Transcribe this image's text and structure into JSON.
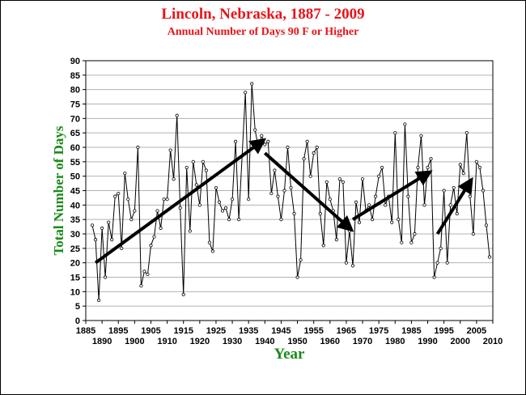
{
  "chart_data": {
    "type": "line",
    "title": "Lincoln, Nebraska, 1887 - 2009",
    "subtitle": "Annual Number of Days 90 F or Higher",
    "xlabel": "Year",
    "ylabel": "Total Number of Days",
    "xlim": [
      1885,
      2010
    ],
    "ylim": [
      0,
      90
    ],
    "y_ticks": [
      0,
      5,
      10,
      15,
      20,
      25,
      30,
      35,
      40,
      45,
      50,
      55,
      60,
      65,
      70,
      75,
      80,
      85,
      90
    ],
    "x_ticks_upper": [
      1885,
      1895,
      1905,
      1915,
      1925,
      1935,
      1945,
      1955,
      1965,
      1975,
      1985,
      1995,
      2005
    ],
    "x_ticks_lower": [
      1890,
      1900,
      1910,
      1920,
      1930,
      1940,
      1950,
      1960,
      1970,
      1980,
      1990,
      2000,
      2010
    ],
    "grid": true,
    "series": [
      {
        "color": "#000000",
        "x": [
          1887,
          1888,
          1889,
          1890,
          1891,
          1892,
          1893,
          1894,
          1895,
          1896,
          1897,
          1898,
          1899,
          1900,
          1901,
          1902,
          1903,
          1904,
          1905,
          1906,
          1907,
          1908,
          1909,
          1910,
          1911,
          1912,
          1913,
          1914,
          1915,
          1916,
          1917,
          1918,
          1919,
          1920,
          1921,
          1922,
          1923,
          1924,
          1925,
          1926,
          1927,
          1928,
          1929,
          1930,
          1931,
          1932,
          1933,
          1934,
          1935,
          1936,
          1937,
          1938,
          1939,
          1940,
          1941,
          1942,
          1943,
          1944,
          1945,
          1946,
          1947,
          1948,
          1949,
          1950,
          1951,
          1952,
          1953,
          1954,
          1955,
          1956,
          1957,
          1958,
          1959,
          1960,
          1961,
          1962,
          1963,
          1964,
          1965,
          1966,
          1967,
          1968,
          1969,
          1970,
          1971,
          1972,
          1973,
          1974,
          1975,
          1976,
          1977,
          1978,
          1979,
          1980,
          1981,
          1982,
          1983,
          1984,
          1985,
          1986,
          1987,
          1988,
          1989,
          1990,
          1991,
          1992,
          1993,
          1994,
          1995,
          1996,
          1997,
          1998,
          1999,
          2000,
          2001,
          2002,
          2003,
          2004,
          2005,
          2006,
          2007,
          2008,
          2009
        ],
        "values": [
          33,
          28,
          7,
          32,
          15,
          34,
          28,
          43,
          44,
          25,
          51,
          42,
          35,
          38,
          60,
          12,
          17,
          16,
          26,
          29,
          38,
          32,
          42,
          42,
          59,
          49,
          71,
          39,
          9,
          53,
          31,
          55,
          47,
          40,
          55,
          52,
          27,
          24,
          46,
          41,
          38,
          39,
          35,
          42,
          62,
          35,
          57,
          79,
          42,
          82,
          66,
          60,
          64,
          61,
          62,
          44,
          52,
          43,
          35,
          45,
          60,
          46,
          37,
          15,
          21,
          56,
          62,
          50,
          58,
          60,
          37,
          26,
          48,
          42,
          38,
          28,
          49,
          48,
          20,
          31,
          19,
          41,
          34,
          49,
          38,
          40,
          35,
          43,
          50,
          53,
          40,
          43,
          34,
          65,
          35,
          27,
          68,
          43,
          27,
          30,
          53,
          64,
          40,
          53,
          56,
          15,
          20,
          25,
          45,
          20,
          40,
          46,
          37,
          54,
          51,
          65,
          43,
          30,
          55,
          53,
          45,
          33,
          22
        ]
      }
    ],
    "annotations": [
      {
        "type": "arrow",
        "from": [
          1888,
          20
        ],
        "to": [
          1939,
          62
        ]
      },
      {
        "type": "arrow",
        "from": [
          1940,
          58
        ],
        "to": [
          1966,
          32
        ]
      },
      {
        "type": "arrow",
        "from": [
          1967,
          35
        ],
        "to": [
          1990,
          51
        ]
      },
      {
        "type": "arrow",
        "from": [
          1993,
          30
        ],
        "to": [
          2003,
          48
        ]
      }
    ]
  }
}
